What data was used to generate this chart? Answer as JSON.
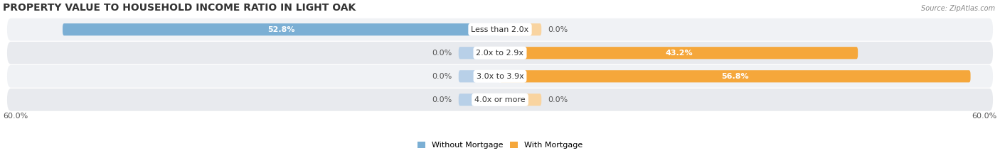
{
  "title": "PROPERTY VALUE TO HOUSEHOLD INCOME RATIO IN LIGHT OAK",
  "source": "Source: ZipAtlas.com",
  "categories": [
    "Less than 2.0x",
    "2.0x to 2.9x",
    "3.0x to 3.9x",
    "4.0x or more"
  ],
  "without_mortgage": [
    52.8,
    0.0,
    0.0,
    0.0
  ],
  "with_mortgage": [
    0.0,
    43.2,
    56.8,
    0.0
  ],
  "xlim": [
    -60,
    60
  ],
  "x_ticks_left": 60.0,
  "x_ticks_right": 60.0,
  "color_without": "#7bafd4",
  "color_with": "#f5a73b",
  "color_without_light": "#b8d0e8",
  "color_with_light": "#f9d4a0",
  "row_colors": [
    "#f0f2f5",
    "#e8eaee"
  ],
  "title_fontsize": 10,
  "label_fontsize": 8,
  "value_fontsize": 8,
  "bar_height": 0.52,
  "stub_size": 5.0,
  "figsize": [
    14.06,
    2.33
  ]
}
